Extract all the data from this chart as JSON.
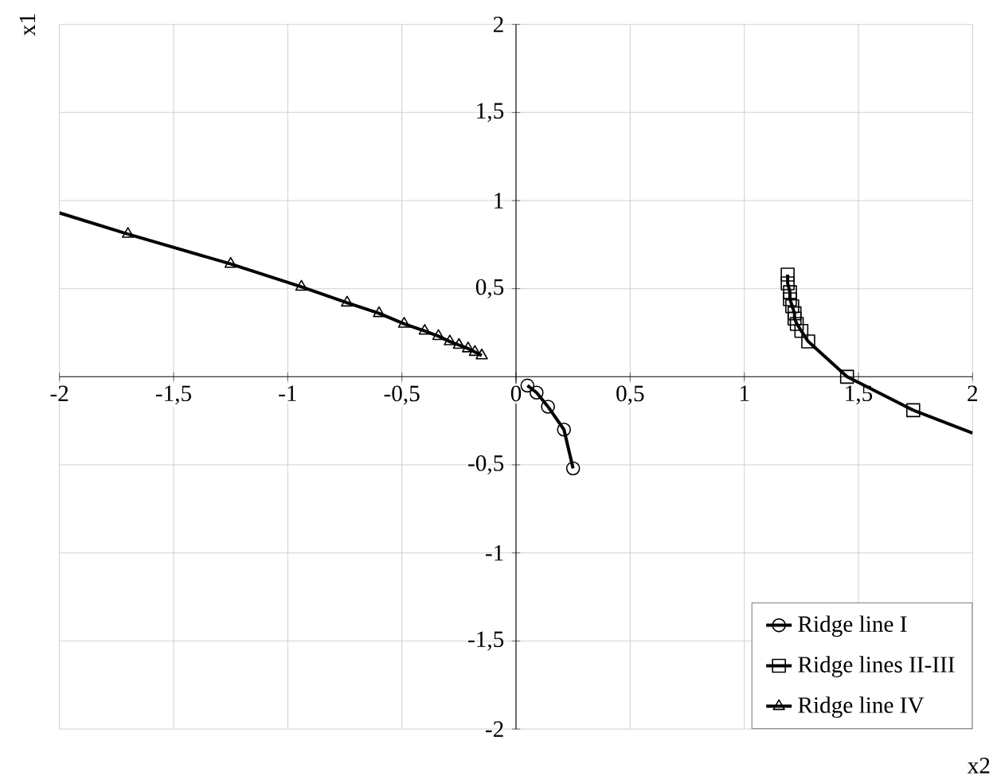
{
  "chart_data": {
    "type": "line",
    "xlabel": "x2",
    "ylabel": "x1",
    "xlim": [
      -2,
      2
    ],
    "ylim": [
      -2,
      2
    ],
    "xticks": [
      {
        "value": -2,
        "label": "-2"
      },
      {
        "value": -1.5,
        "label": "-1,5"
      },
      {
        "value": -1,
        "label": "-1"
      },
      {
        "value": -0.5,
        "label": "-0,5"
      },
      {
        "value": 0,
        "label": "0"
      },
      {
        "value": 0.5,
        "label": "0,5"
      },
      {
        "value": 1,
        "label": "1"
      },
      {
        "value": 1.5,
        "label": "1,5"
      },
      {
        "value": 2,
        "label": "2"
      }
    ],
    "yticks": [
      {
        "value": -2,
        "label": "-2"
      },
      {
        "value": -1.5,
        "label": "-1,5"
      },
      {
        "value": -1,
        "label": "-1"
      },
      {
        "value": -0.5,
        "label": "-0,5"
      },
      {
        "value": 0.5,
        "label": "0,5"
      },
      {
        "value": 1,
        "label": "1"
      },
      {
        "value": 1.5,
        "label": "1,5"
      },
      {
        "value": 2,
        "label": "2"
      }
    ],
    "grid": true,
    "legend": "bottom right",
    "series": [
      {
        "name": "Ridge line I",
        "color": "#000000",
        "marker": "circle",
        "x": [
          0.05,
          0.09,
          0.14,
          0.21,
          0.25
        ],
        "values": [
          -0.05,
          -0.09,
          -0.17,
          -0.3,
          -0.52
        ]
      },
      {
        "name": "Ridge lines II-III",
        "color": "#000000",
        "marker": "square",
        "x": [
          1.19,
          1.19,
          1.2,
          1.2,
          1.21,
          1.22,
          1.22,
          1.23,
          1.25,
          1.28,
          1.45,
          1.74
        ],
        "values": [
          0.58,
          0.53,
          0.48,
          0.44,
          0.4,
          0.36,
          0.33,
          0.3,
          0.26,
          0.2,
          0.0,
          -0.19
        ]
      },
      {
        "name": "Ridge line IV",
        "color": "#000000",
        "marker": "triangle",
        "x": [
          -1.7,
          -1.25,
          -0.94,
          -0.74,
          -0.6,
          -0.49,
          -0.4,
          -0.34,
          -0.29,
          -0.25,
          -0.21,
          -0.18,
          -0.15
        ],
        "values": [
          0.81,
          0.64,
          0.51,
          0.42,
          0.36,
          0.3,
          0.26,
          0.23,
          0.2,
          0.18,
          0.16,
          0.14,
          0.12
        ]
      },
      {
        "color": "#000000",
        "marker": "none",
        "x": [
          1.74,
          2
        ],
        "values": [
          -0.19,
          -0.32
        ]
      },
      {
        "color": "#000000",
        "marker": "none",
        "x": [
          -2,
          -1.7
        ],
        "values": [
          0.93,
          0.81
        ]
      }
    ]
  }
}
